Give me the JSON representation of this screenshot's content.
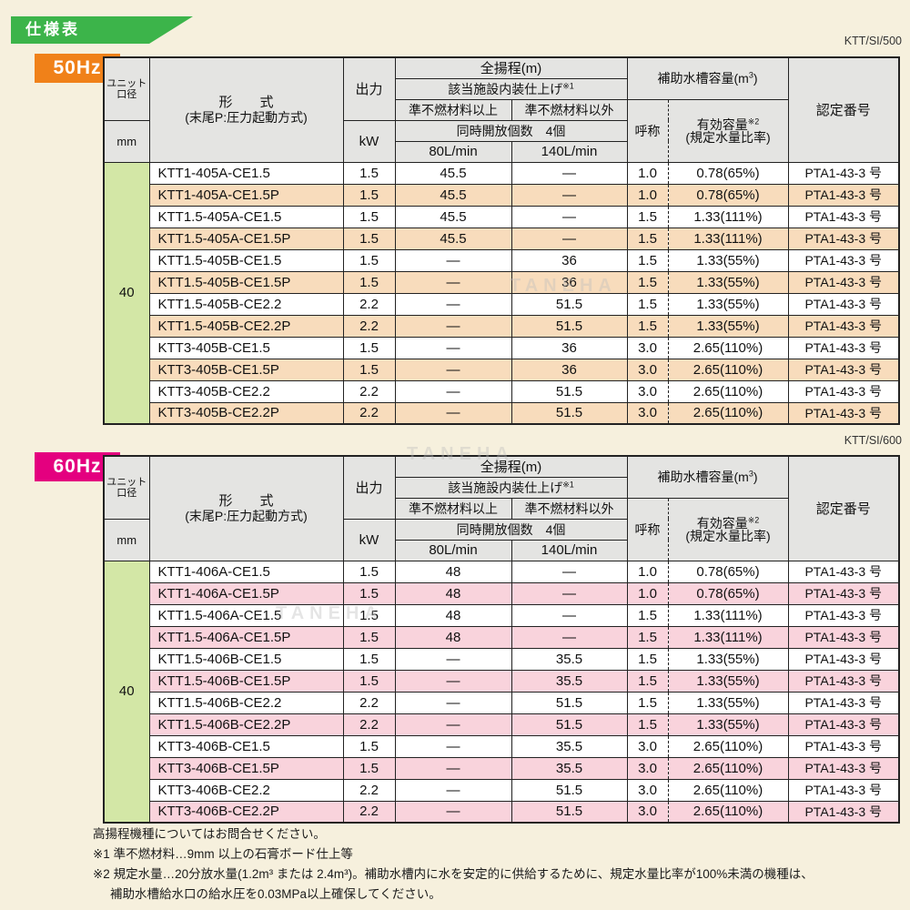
{
  "page": {
    "banner_title": "仕様表",
    "watermark": "TANEHA"
  },
  "colors": {
    "page_background": "#f6f0dd",
    "banner_green": "#3cb44a",
    "header_cell_gray": "#e4e4e2",
    "border_black": "#222222",
    "badge_50hz_orange": "#f08119",
    "badge_60hz_magenta": "#e4007f",
    "row_highlight_50hz": "#f8dcbc",
    "row_highlight_60hz": "#f9d3dc",
    "diameter_cell_green": "#d3e7a6",
    "watermark_gray": "#bdbdbd"
  },
  "header": {
    "unit_dia_line1": "ユニット",
    "unit_dia_line2": "口径",
    "unit_dia_unit": "mm",
    "model_title": "形　　式",
    "model_sub": "(末尾P:圧力起動方式)",
    "output": "出力",
    "output_unit": "kW",
    "total_head": "全揚程(m)",
    "interior_finish": "該当施設内装仕上げ",
    "interior_finish_sup": "※1",
    "material_above": "準不燃材料以上",
    "material_other": "準不燃材料以外",
    "simultaneous_open": "同時開放個数　4個",
    "flow_80": "80L/min",
    "flow_140": "140L/min",
    "aux_tank_pre": "補助水槽容量(m",
    "aux_tank_sup": "3",
    "aux_tank_post": ")",
    "nominal": "呼称",
    "effective_title": "有効容量",
    "effective_sup": "※2",
    "effective_sub": "(規定水量比率)",
    "cert_number": "認定番号"
  },
  "tables": [
    {
      "freq_label": "50Hz",
      "doc_code": "KTT/SI/500",
      "diameter": "40",
      "badge_color": "#f08119",
      "highlight_color": "#f8dcbc",
      "rows": [
        {
          "model": "KTT1-405A-CE1.5",
          "kw": "1.5",
          "v80": "45.5",
          "v140": "—",
          "nominal": "1.0",
          "effective": "0.78(65%)",
          "cert": "PTA1-43-3 号",
          "highlight": false
        },
        {
          "model": "KTT1-405A-CE1.5P",
          "kw": "1.5",
          "v80": "45.5",
          "v140": "—",
          "nominal": "1.0",
          "effective": "0.78(65%)",
          "cert": "PTA1-43-3 号",
          "highlight": true
        },
        {
          "model": "KTT1.5-405A-CE1.5",
          "kw": "1.5",
          "v80": "45.5",
          "v140": "—",
          "nominal": "1.5",
          "effective": "1.33(111%)",
          "cert": "PTA1-43-3 号",
          "highlight": false
        },
        {
          "model": "KTT1.5-405A-CE1.5P",
          "kw": "1.5",
          "v80": "45.5",
          "v140": "—",
          "nominal": "1.5",
          "effective": "1.33(111%)",
          "cert": "PTA1-43-3 号",
          "highlight": true
        },
        {
          "model": "KTT1.5-405B-CE1.5",
          "kw": "1.5",
          "v80": "—",
          "v140": "36",
          "nominal": "1.5",
          "effective": "1.33(55%)",
          "cert": "PTA1-43-3 号",
          "highlight": false
        },
        {
          "model": "KTT1.5-405B-CE1.5P",
          "kw": "1.5",
          "v80": "—",
          "v140": "36",
          "nominal": "1.5",
          "effective": "1.33(55%)",
          "cert": "PTA1-43-3 号",
          "highlight": true
        },
        {
          "model": "KTT1.5-405B-CE2.2",
          "kw": "2.2",
          "v80": "—",
          "v140": "51.5",
          "nominal": "1.5",
          "effective": "1.33(55%)",
          "cert": "PTA1-43-3 号",
          "highlight": false
        },
        {
          "model": "KTT1.5-405B-CE2.2P",
          "kw": "2.2",
          "v80": "—",
          "v140": "51.5",
          "nominal": "1.5",
          "effective": "1.33(55%)",
          "cert": "PTA1-43-3 号",
          "highlight": true
        },
        {
          "model": "KTT3-405B-CE1.5",
          "kw": "1.5",
          "v80": "—",
          "v140": "36",
          "nominal": "3.0",
          "effective": "2.65(110%)",
          "cert": "PTA1-43-3 号",
          "highlight": false
        },
        {
          "model": "KTT3-405B-CE1.5P",
          "kw": "1.5",
          "v80": "—",
          "v140": "36",
          "nominal": "3.0",
          "effective": "2.65(110%)",
          "cert": "PTA1-43-3 号",
          "highlight": true
        },
        {
          "model": "KTT3-405B-CE2.2",
          "kw": "2.2",
          "v80": "—",
          "v140": "51.5",
          "nominal": "3.0",
          "effective": "2.65(110%)",
          "cert": "PTA1-43-3 号",
          "highlight": false
        },
        {
          "model": "KTT3-405B-CE2.2P",
          "kw": "2.2",
          "v80": "—",
          "v140": "51.5",
          "nominal": "3.0",
          "effective": "2.65(110%)",
          "cert": "PTA1-43-3 号",
          "highlight": true
        }
      ]
    },
    {
      "freq_label": "60Hz",
      "doc_code": "KTT/SI/600",
      "diameter": "40",
      "badge_color": "#e4007f",
      "highlight_color": "#f9d3dc",
      "rows": [
        {
          "model": "KTT1-406A-CE1.5",
          "kw": "1.5",
          "v80": "48",
          "v140": "—",
          "nominal": "1.0",
          "effective": "0.78(65%)",
          "cert": "PTA1-43-3 号",
          "highlight": false
        },
        {
          "model": "KTT1-406A-CE1.5P",
          "kw": "1.5",
          "v80": "48",
          "v140": "—",
          "nominal": "1.0",
          "effective": "0.78(65%)",
          "cert": "PTA1-43-3 号",
          "highlight": true
        },
        {
          "model": "KTT1.5-406A-CE1.5",
          "kw": "1.5",
          "v80": "48",
          "v140": "—",
          "nominal": "1.5",
          "effective": "1.33(111%)",
          "cert": "PTA1-43-3 号",
          "highlight": false
        },
        {
          "model": "KTT1.5-406A-CE1.5P",
          "kw": "1.5",
          "v80": "48",
          "v140": "—",
          "nominal": "1.5",
          "effective": "1.33(111%)",
          "cert": "PTA1-43-3 号",
          "highlight": true
        },
        {
          "model": "KTT1.5-406B-CE1.5",
          "kw": "1.5",
          "v80": "—",
          "v140": "35.5",
          "nominal": "1.5",
          "effective": "1.33(55%)",
          "cert": "PTA1-43-3 号",
          "highlight": false
        },
        {
          "model": "KTT1.5-406B-CE1.5P",
          "kw": "1.5",
          "v80": "—",
          "v140": "35.5",
          "nominal": "1.5",
          "effective": "1.33(55%)",
          "cert": "PTA1-43-3 号",
          "highlight": true
        },
        {
          "model": "KTT1.5-406B-CE2.2",
          "kw": "2.2",
          "v80": "—",
          "v140": "51.5",
          "nominal": "1.5",
          "effective": "1.33(55%)",
          "cert": "PTA1-43-3 号",
          "highlight": false
        },
        {
          "model": "KTT1.5-406B-CE2.2P",
          "kw": "2.2",
          "v80": "—",
          "v140": "51.5",
          "nominal": "1.5",
          "effective": "1.33(55%)",
          "cert": "PTA1-43-3 号",
          "highlight": true
        },
        {
          "model": "KTT3-406B-CE1.5",
          "kw": "1.5",
          "v80": "—",
          "v140": "35.5",
          "nominal": "3.0",
          "effective": "2.65(110%)",
          "cert": "PTA1-43-3 号",
          "highlight": false
        },
        {
          "model": "KTT3-406B-CE1.5P",
          "kw": "1.5",
          "v80": "—",
          "v140": "35.5",
          "nominal": "3.0",
          "effective": "2.65(110%)",
          "cert": "PTA1-43-3 号",
          "highlight": true
        },
        {
          "model": "KTT3-406B-CE2.2",
          "kw": "2.2",
          "v80": "—",
          "v140": "51.5",
          "nominal": "3.0",
          "effective": "2.65(110%)",
          "cert": "PTA1-43-3 号",
          "highlight": false
        },
        {
          "model": "KTT3-406B-CE2.2P",
          "kw": "2.2",
          "v80": "—",
          "v140": "51.5",
          "nominal": "3.0",
          "effective": "2.65(110%)",
          "cert": "PTA1-43-3 号",
          "highlight": true
        }
      ]
    }
  ],
  "notes": [
    {
      "text": "高揚程機種についてはお問合せください。",
      "indent": false
    },
    {
      "text": "※1 準不燃材料…9mm 以上の石膏ボード仕上等",
      "indent": false
    },
    {
      "text": "※2 規定水量…20分放水量(1.2m³ または 2.4m³)。補助水槽内に水を安定的に供給するために、規定水量比率が100%未満の機種は、",
      "indent": false
    },
    {
      "text": "補助水槽給水口の給水圧を0.03MPa以上確保してください。",
      "indent": true
    }
  ]
}
